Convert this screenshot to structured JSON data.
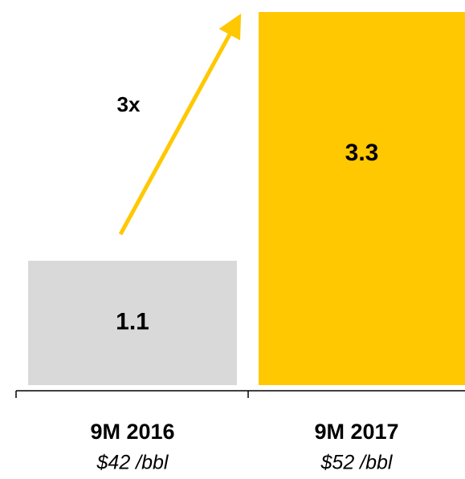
{
  "chart_data": {
    "type": "bar",
    "categories": [
      "9M 2016",
      "9M 2017"
    ],
    "sublabels": [
      "$42 /bbl",
      "$52 /bbl"
    ],
    "values": [
      1.1,
      3.3
    ],
    "colors": [
      "#d9d9d9",
      "#ffc800"
    ],
    "annotation": "3x"
  }
}
